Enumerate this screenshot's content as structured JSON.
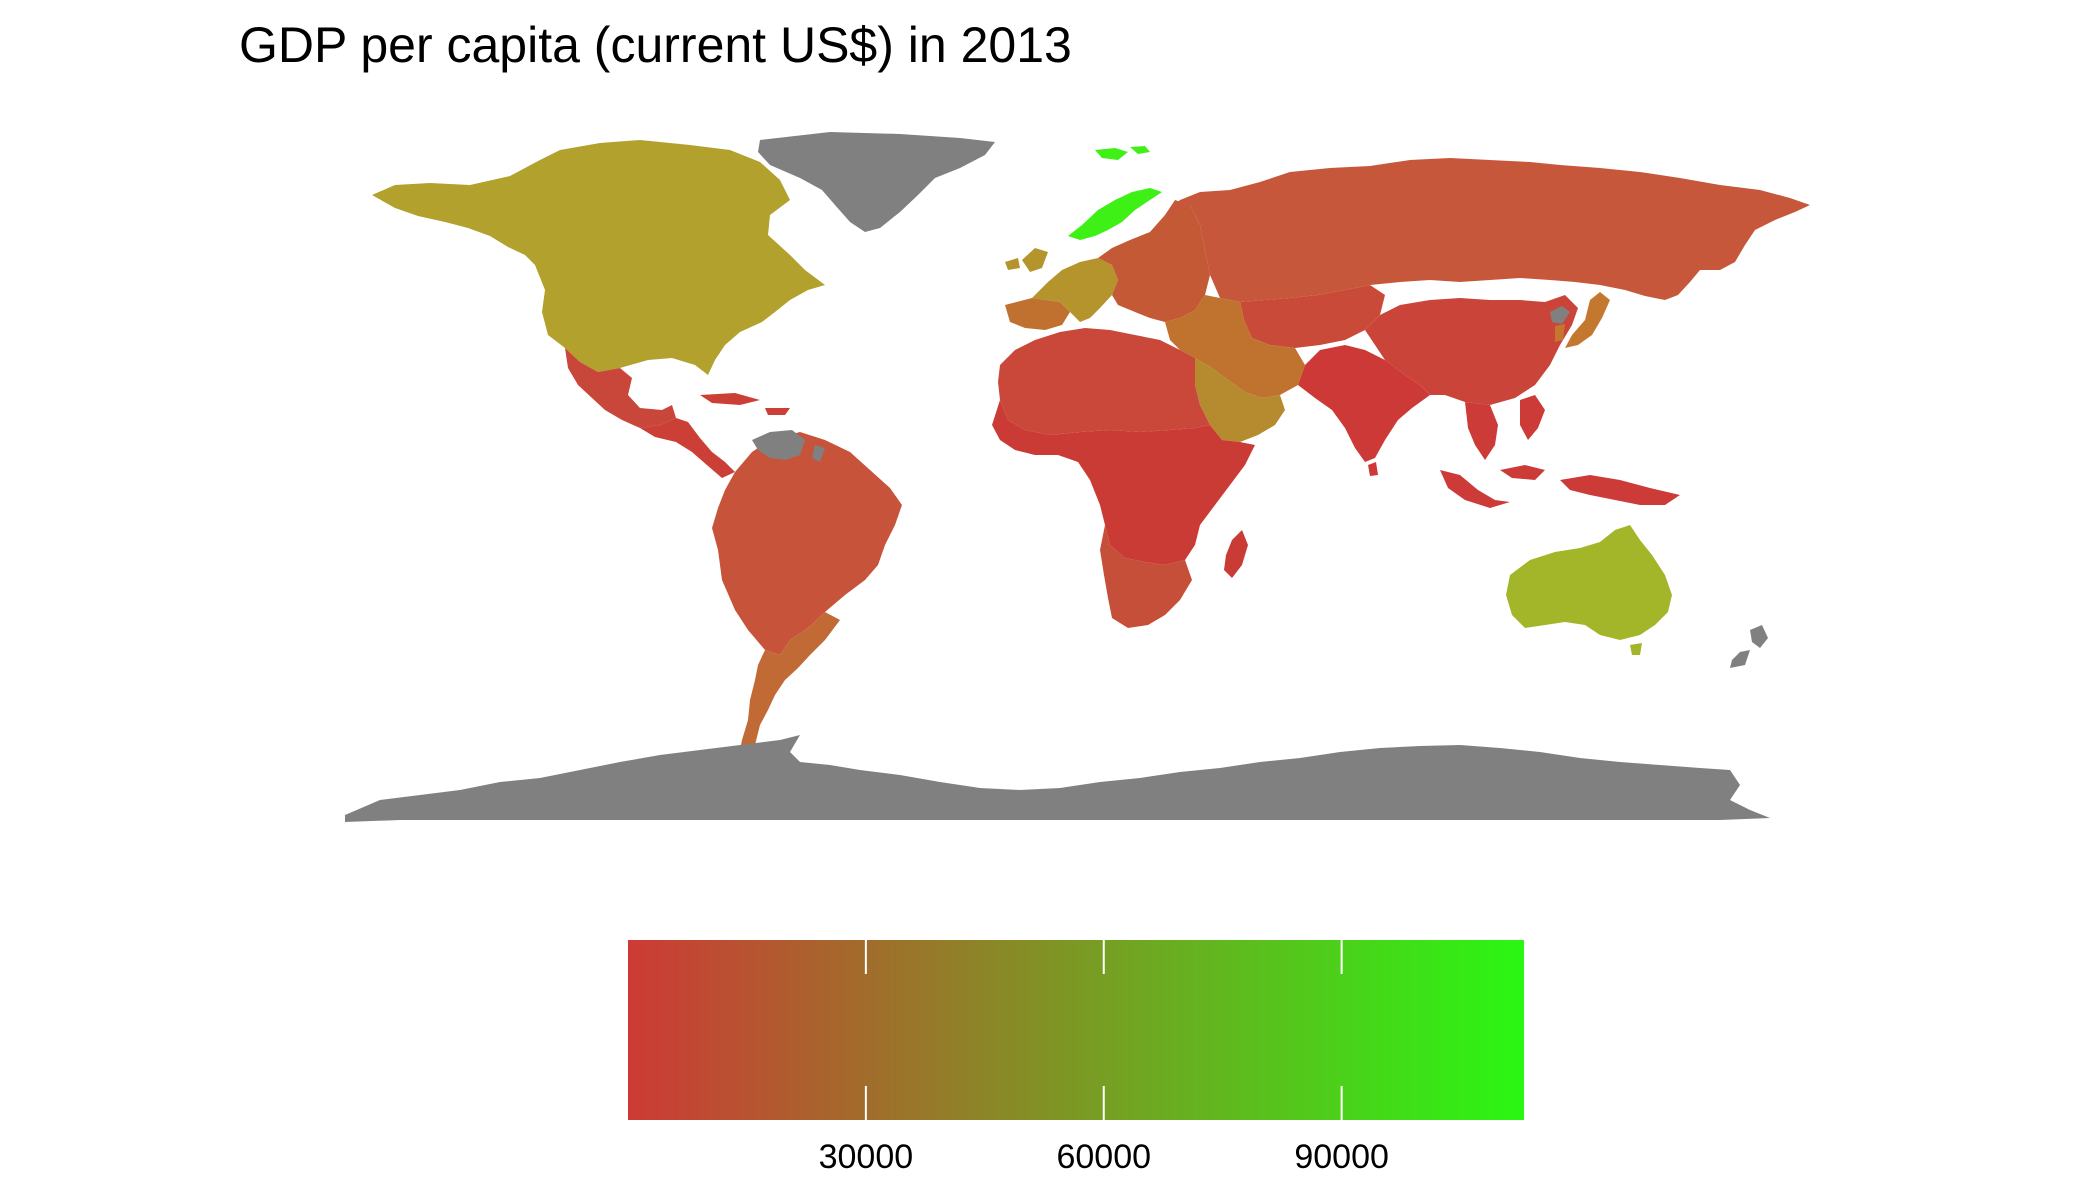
{
  "title": "GDP per capita (current US$) in 2013",
  "chart_data": {
    "type": "choropleth",
    "title": "GDP per capita (current US$) in 2013",
    "metric": "GDP per capita (current US$)",
    "year": 2013,
    "color_scale": {
      "min": 0,
      "max": 113000,
      "low_color": "#cd3a35",
      "high_color": "#2af713",
      "na_color": "#808080",
      "breaks": [
        30000,
        60000,
        90000
      ],
      "break_labels": [
        "30000",
        "60000",
        "90000"
      ]
    },
    "regions": [
      {
        "name": "North America",
        "fill": "#b3a12d"
      },
      {
        "name": "Greenland",
        "fill": "#808080"
      },
      {
        "name": "Mexico",
        "fill": "#c9473a"
      },
      {
        "name": "Central America & Caribbean",
        "fill": "#cb3f36"
      },
      {
        "name": "South America",
        "fill": "#c7533a"
      },
      {
        "name": "Southern Cone",
        "fill": "#c26a36"
      },
      {
        "name": "Guianas / Venezuela",
        "fill": "#808080"
      },
      {
        "name": "Western Europe",
        "fill": "#b5942e"
      },
      {
        "name": "Iberia",
        "fill": "#c0712f"
      },
      {
        "name": "Norway",
        "fill": "#3ef016"
      },
      {
        "name": "Svalbard",
        "fill": "#3ef016"
      },
      {
        "name": "Eastern Europe",
        "fill": "#c35a35"
      },
      {
        "name": "Russia",
        "fill": "#c7573a"
      },
      {
        "name": "Central Asia",
        "fill": "#c94a38"
      },
      {
        "name": "Middle East",
        "fill": "#c0722f"
      },
      {
        "name": "Arabian Peninsula",
        "fill": "#b68a2e"
      },
      {
        "name": "North Africa",
        "fill": "#c9483a"
      },
      {
        "name": "Sub-Saharan Africa",
        "fill": "#cb3b36"
      },
      {
        "name": "Southern Africa",
        "fill": "#c54f39"
      },
      {
        "name": "Madagascar",
        "fill": "#cb3b36"
      },
      {
        "name": "South Asia",
        "fill": "#cc3936"
      },
      {
        "name": "China",
        "fill": "#ca4439"
      },
      {
        "name": "Japan / Korea",
        "fill": "#c4782f"
      },
      {
        "name": "North Korea",
        "fill": "#808080"
      },
      {
        "name": "Southeast Asia",
        "fill": "#cc3b37"
      },
      {
        "name": "Australia",
        "fill": "#a3b529"
      },
      {
        "name": "New Zealand",
        "fill": "#808080"
      },
      {
        "name": "Antarctica",
        "fill": "#808080"
      }
    ]
  }
}
